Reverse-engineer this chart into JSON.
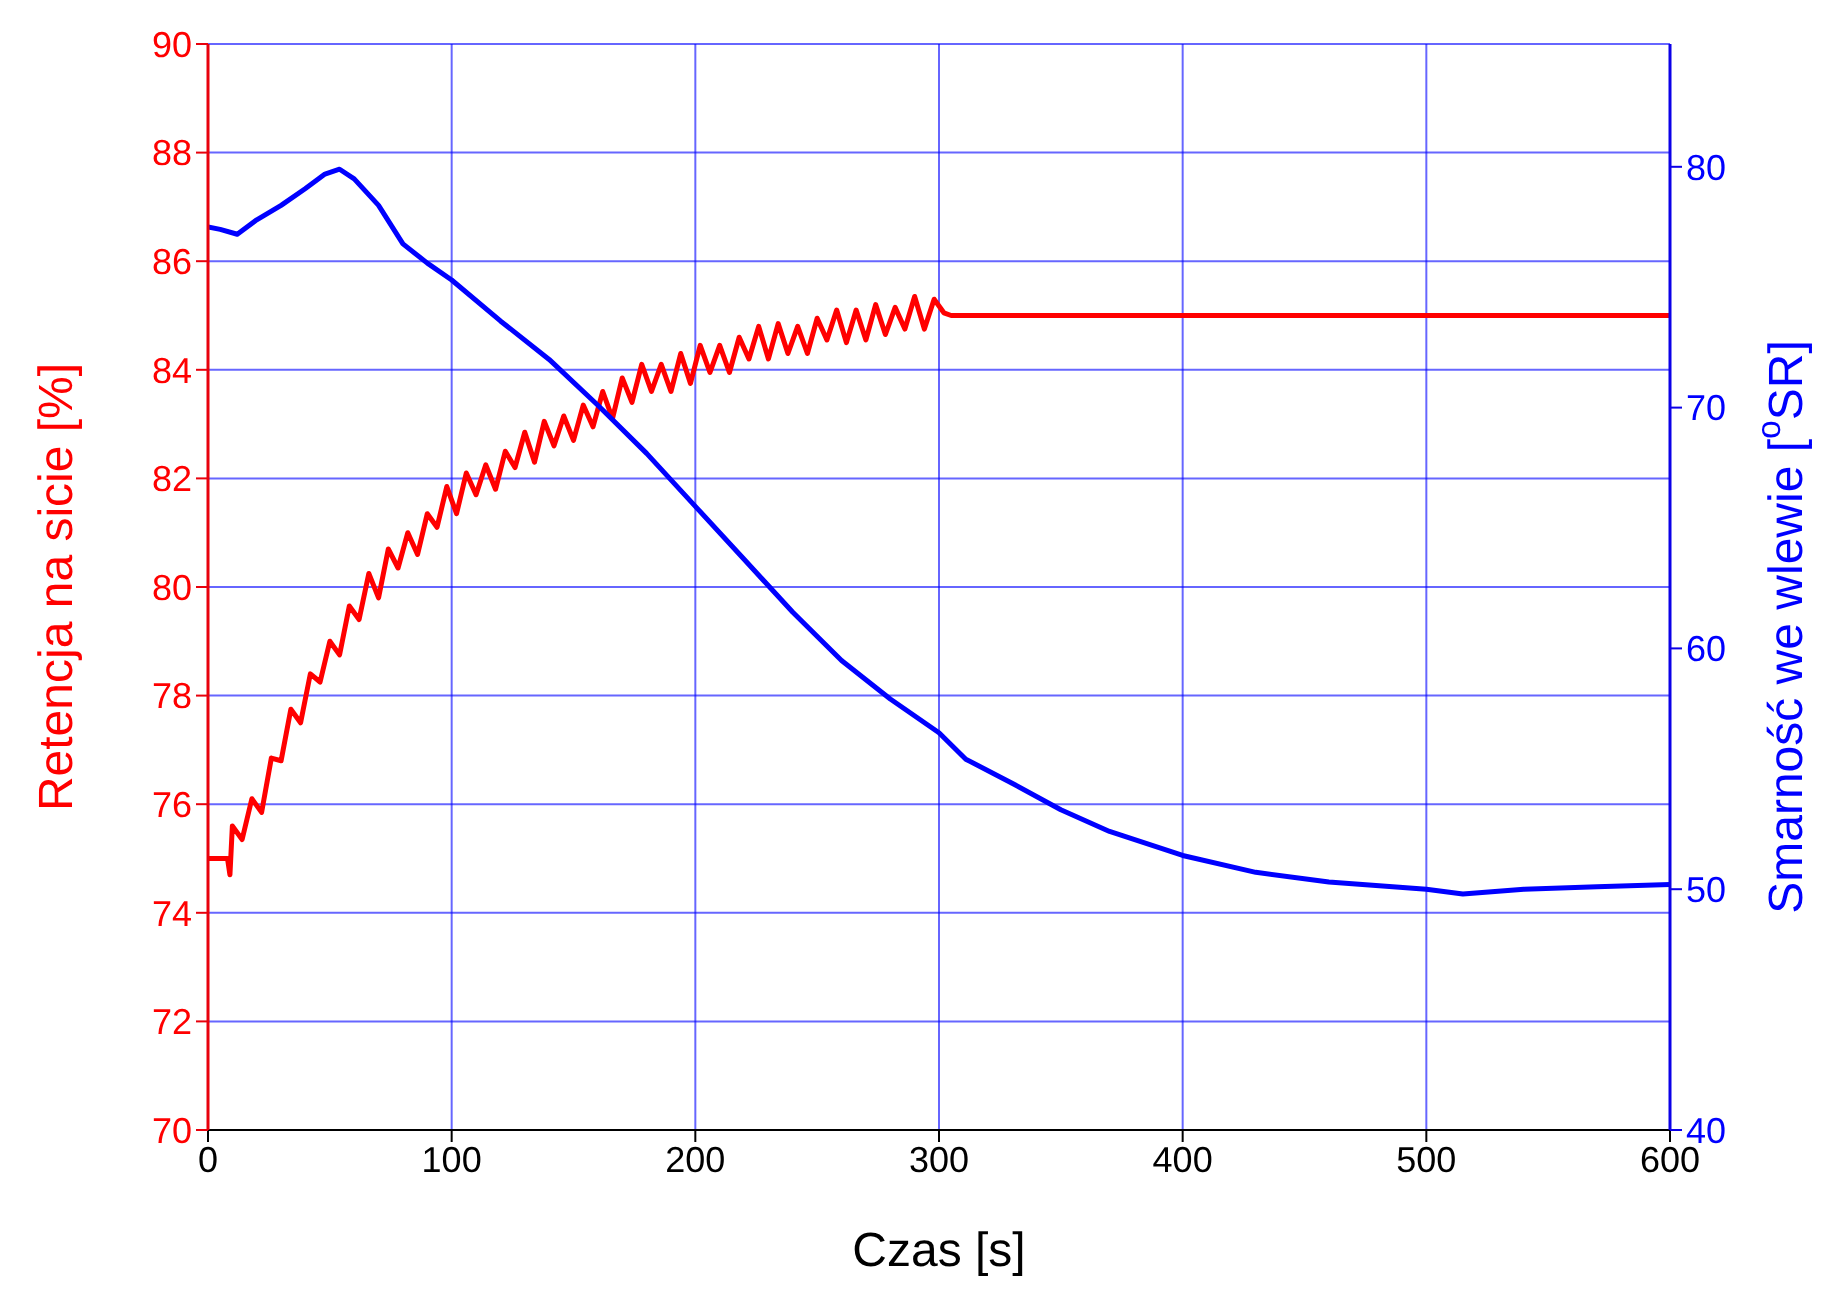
{
  "chart_data": {
    "type": "line",
    "xlabel": "Czas [s]",
    "ylabel": "Retencja na sicie [%]",
    "y2label": "Smarność we wlewie [$^{o}$SR]",
    "xlim": [
      0,
      600
    ],
    "xticks": [
      0,
      100,
      200,
      300,
      400,
      500,
      600
    ],
    "ylim": [
      70,
      90
    ],
    "yticks": [
      70,
      72,
      74,
      76,
      78,
      80,
      82,
      84,
      86,
      88,
      90
    ],
    "y2lim": [
      40,
      85.1
    ],
    "y2ticks": [
      40,
      50,
      60,
      70,
      80
    ],
    "grid": true,
    "series": [
      {
        "color": "#ff0000",
        "axis": "y",
        "x": [
          0,
          8,
          9,
          10,
          14,
          18,
          22,
          26,
          30,
          34,
          38,
          42,
          46,
          50,
          54,
          58,
          62,
          66,
          70,
          74,
          78,
          82,
          86,
          90,
          94,
          98,
          102,
          106,
          110,
          114,
          118,
          122,
          126,
          130,
          134,
          138,
          142,
          146,
          150,
          154,
          158,
          162,
          166,
          170,
          174,
          178,
          182,
          186,
          190,
          194,
          198,
          202,
          206,
          210,
          214,
          218,
          222,
          226,
          230,
          234,
          238,
          242,
          246,
          250,
          254,
          258,
          262,
          266,
          270,
          274,
          278,
          282,
          286,
          290,
          294,
          298,
          302,
          305,
          600
        ],
        "values": [
          75,
          75,
          74.7,
          75.6,
          75.35,
          76.1,
          75.85,
          76.85,
          76.8,
          77.75,
          77.5,
          78.4,
          78.25,
          79,
          78.75,
          79.65,
          79.4,
          80.25,
          79.8,
          80.7,
          80.35,
          81,
          80.6,
          81.35,
          81.1,
          81.85,
          81.35,
          82.1,
          81.7,
          82.25,
          81.8,
          82.5,
          82.2,
          82.85,
          82.3,
          83.05,
          82.6,
          83.15,
          82.7,
          83.35,
          82.95,
          83.6,
          83.1,
          83.85,
          83.4,
          84.1,
          83.6,
          84.1,
          83.6,
          84.3,
          83.75,
          84.45,
          83.95,
          84.45,
          83.95,
          84.6,
          84.2,
          84.8,
          84.2,
          84.85,
          84.3,
          84.8,
          84.3,
          84.95,
          84.55,
          85.1,
          84.5,
          85.1,
          84.55,
          85.2,
          84.65,
          85.15,
          84.75,
          85.35,
          84.75,
          85.3,
          85.05,
          85,
          85
        ]
      },
      {
        "color": "#0000ff",
        "axis": "y2",
        "x": [
          0,
          5,
          12,
          20,
          30,
          40,
          48,
          54,
          60,
          70,
          80,
          90,
          100,
          120,
          140,
          160,
          180,
          200,
          220,
          240,
          260,
          280,
          300,
          311,
          330,
          350,
          370,
          400,
          430,
          460,
          500,
          515,
          540,
          570,
          600
        ],
        "values": [
          77.5,
          77.4,
          77.2,
          77.8,
          78.4,
          79.1,
          79.7,
          79.9,
          79.5,
          78.4,
          76.8,
          76,
          75.3,
          73.6,
          72,
          70.1,
          68.1,
          65.9,
          63.7,
          61.5,
          59.5,
          57.9,
          56.5,
          55.4,
          54.4,
          53.3,
          52.4,
          51.4,
          50.7,
          50.3,
          50,
          49.8,
          50,
          50.1,
          50.2
        ]
      }
    ]
  }
}
